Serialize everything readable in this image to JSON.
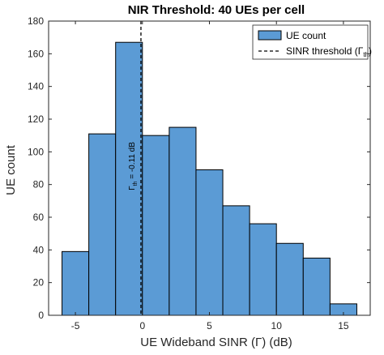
{
  "chart_data": {
    "type": "bar",
    "title": "NIR Threshold: 40 UEs per cell",
    "xlabel": "UE Wideband SINR (Γ) (dB)",
    "ylabel": "UE count",
    "xlim": [
      -7,
      17
    ],
    "ylim": [
      0,
      180
    ],
    "xticks": [
      -5,
      0,
      5,
      10,
      15
    ],
    "yticks": [
      0,
      20,
      40,
      60,
      80,
      100,
      120,
      140,
      160,
      180
    ],
    "bin_edges": [
      -6,
      -4,
      -2,
      0,
      2,
      4,
      6,
      8,
      10,
      12,
      14,
      16
    ],
    "values": [
      39,
      111,
      167,
      110,
      115,
      89,
      67,
      56,
      44,
      35,
      7
    ],
    "bar_color": "#5b9bd5",
    "threshold": {
      "x": -0.11,
      "label": "Γth = -0.11 dB"
    },
    "legend": {
      "position": "top-right",
      "entries": [
        {
          "label": "UE count",
          "type": "bar"
        },
        {
          "label": "SINR threshold (Γth)",
          "type": "dashed-line"
        }
      ]
    },
    "grid": false
  }
}
